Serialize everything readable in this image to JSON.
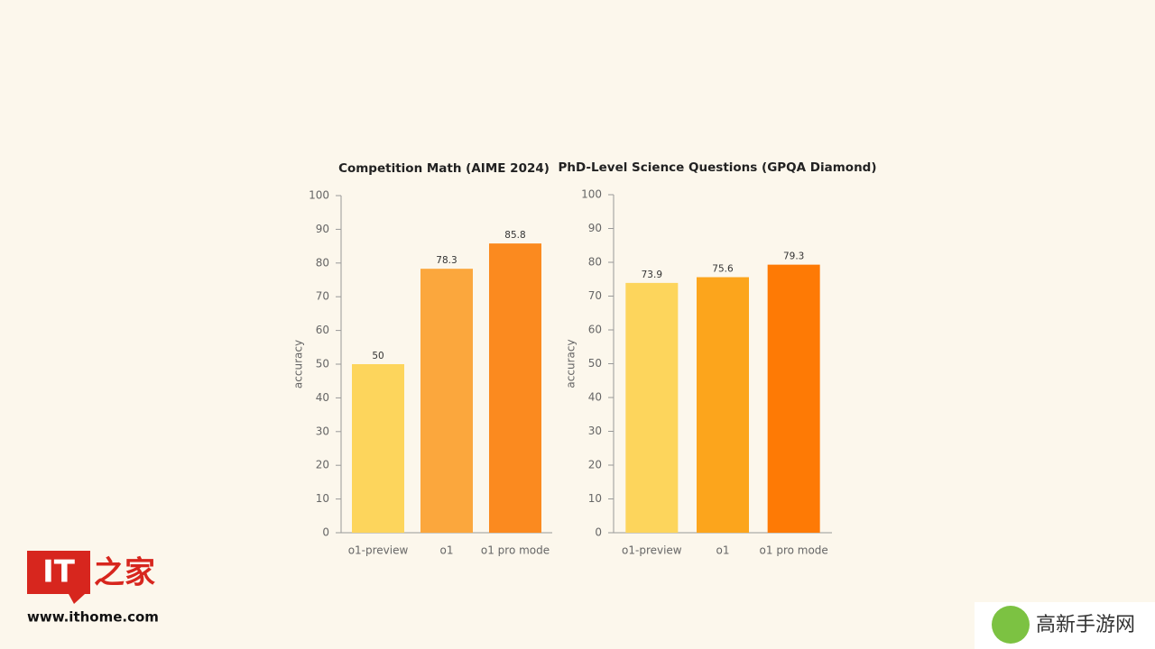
{
  "chart_data": [
    {
      "type": "bar",
      "title": "Competition Math (AIME 2024)",
      "ylabel": "accuracy",
      "categories": [
        "o1-preview",
        "o1",
        "o1 pro mode"
      ],
      "values": [
        50,
        78.3,
        85.8
      ],
      "colors": [
        "#fdd55c",
        "#fba73d",
        "#fb8a1f"
      ],
      "ylim": [
        0,
        100
      ],
      "yticks": [
        0,
        10,
        20,
        30,
        40,
        50,
        60,
        70,
        80,
        90,
        100
      ]
    },
    {
      "type": "bar",
      "title": "PhD-Level Science Questions (GPQA Diamond)",
      "ylabel": "accuracy",
      "categories": [
        "o1-preview",
        "o1",
        "o1 pro mode"
      ],
      "values": [
        73.9,
        75.6,
        79.3
      ],
      "colors": [
        "#fdd55c",
        "#fca51c",
        "#fe7a05"
      ],
      "ylim": [
        0,
        100
      ],
      "yticks": [
        0,
        10,
        20,
        30,
        40,
        50,
        60,
        70,
        80,
        90,
        100
      ]
    }
  ],
  "watermarks": {
    "logo_it": "IT",
    "logo_home": "之家",
    "site": "www.ithome.com",
    "corner": "高新手游网"
  }
}
